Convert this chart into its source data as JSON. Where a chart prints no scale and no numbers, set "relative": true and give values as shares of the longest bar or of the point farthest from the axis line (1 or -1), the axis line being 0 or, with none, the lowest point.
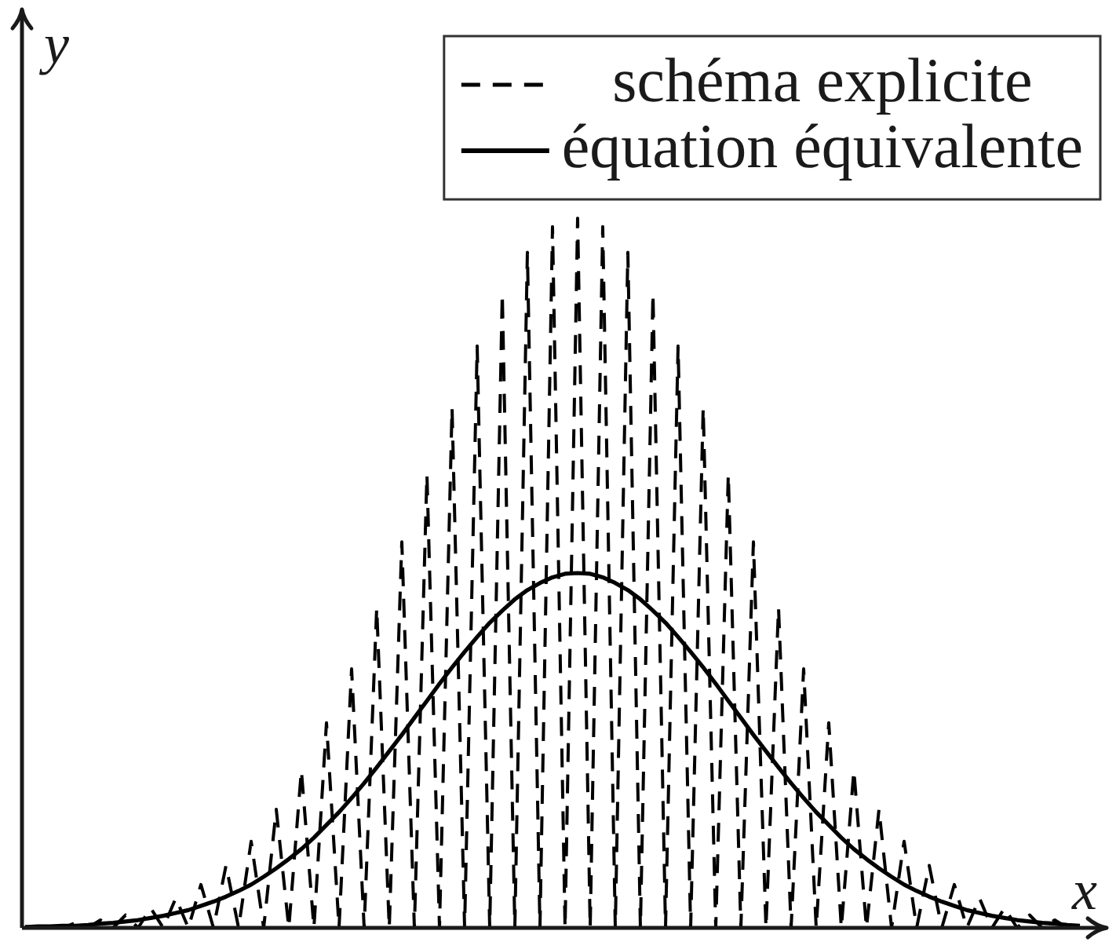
{
  "chart_data": {
    "type": "line",
    "xlabel": "x",
    "ylabel": "y",
    "relative": true,
    "legend": "top right",
    "marker": "none",
    "tick_labels": false,
    "categories": [
      null,
      null,
      null,
      null,
      null,
      null,
      null,
      null,
      null,
      null,
      null,
      null,
      null,
      null,
      null,
      null,
      null,
      null,
      null,
      null,
      null,
      null,
      null,
      null,
      null,
      null,
      null,
      null,
      null,
      null,
      null,
      null,
      null,
      null,
      null,
      null,
      null,
      null,
      null,
      null,
      null,
      null,
      null,
      null,
      null,
      null,
      null,
      null,
      null,
      null,
      null,
      null,
      null,
      null,
      null,
      null,
      null,
      null,
      null,
      null,
      null,
      null,
      null,
      null,
      null,
      null,
      null,
      null,
      null,
      null,
      null,
      null,
      null,
      null,
      null,
      null,
      null,
      null,
      null,
      null,
      null,
      null,
      null,
      null,
      null
    ],
    "series": [
      {
        "name": "schéma explicite",
        "color": "#000000",
        "line_style": "dashed",
        "values": [
          0.002,
          0,
          0.004,
          0,
          0.007,
          0,
          0.011,
          0,
          0.018,
          0,
          0.028,
          0,
          0.042,
          0,
          0.061,
          0,
          0.088,
          0,
          0.122,
          0,
          0.167,
          0,
          0.222,
          0,
          0.289,
          0,
          0.365,
          0,
          0.451,
          0,
          0.544,
          0,
          0.639,
          0,
          0.733,
          0,
          0.82,
          0,
          0.894,
          0,
          0.952,
          0,
          0.988,
          0,
          1,
          0,
          0.988,
          0,
          0.952,
          0,
          0.894,
          0,
          0.82,
          0,
          0.733,
          0,
          0.639,
          0,
          0.544,
          0,
          0.451,
          0,
          0.365,
          0,
          0.289,
          0,
          0.222,
          0,
          0.167,
          0,
          0.122,
          0,
          0.088,
          0,
          0.061,
          0,
          0.042,
          0,
          0.028,
          0,
          0.018,
          0,
          0.011,
          0,
          0.007
        ]
      },
      {
        "name": "équation équivalente",
        "color": "#000000",
        "line_style": "solid",
        "values": [
          0.001,
          0.002,
          0.002,
          0.003,
          0.003,
          0.004,
          0.006,
          0.007,
          0.009,
          0.011,
          0.014,
          0.017,
          0.021,
          0.025,
          0.031,
          0.037,
          0.044,
          0.052,
          0.061,
          0.072,
          0.084,
          0.097,
          0.111,
          0.127,
          0.145,
          0.163,
          0.183,
          0.204,
          0.226,
          0.249,
          0.272,
          0.296,
          0.32,
          0.344,
          0.367,
          0.389,
          0.41,
          0.43,
          0.447,
          0.463,
          0.476,
          0.486,
          0.494,
          0.499,
          0.5,
          0.499,
          0.494,
          0.486,
          0.476,
          0.463,
          0.447,
          0.43,
          0.41,
          0.389,
          0.367,
          0.344,
          0.32,
          0.296,
          0.272,
          0.249,
          0.226,
          0.204,
          0.183,
          0.163,
          0.145,
          0.127,
          0.111,
          0.097,
          0.084,
          0.072,
          0.061,
          0.052,
          0.044,
          0.037,
          0.031,
          0.025,
          0.021,
          0.017,
          0.014,
          0.011,
          0.009,
          0.007,
          0.006,
          0.004,
          0.003
        ]
      }
    ]
  }
}
